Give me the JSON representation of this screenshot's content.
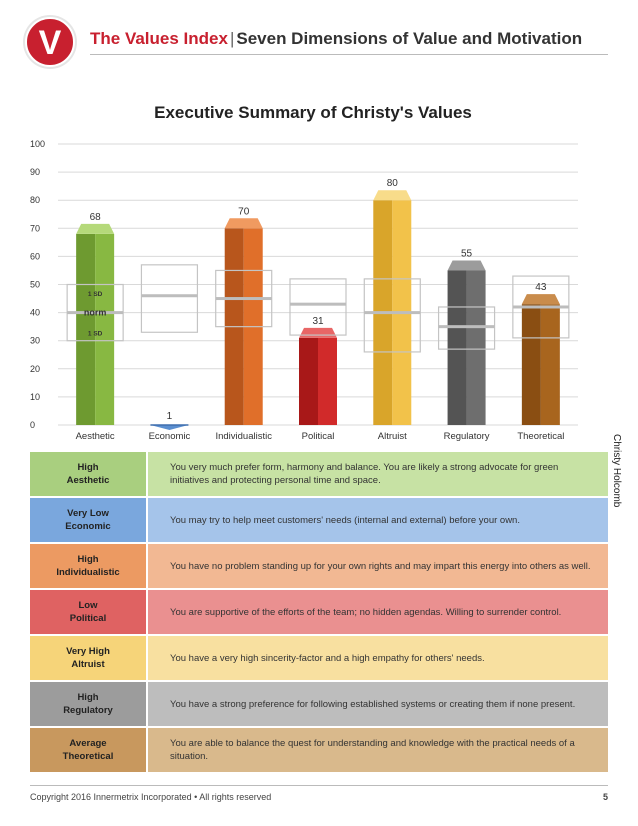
{
  "header": {
    "logo_letter": "V",
    "brand": "The Values Index",
    "separator": "|",
    "subtitle": "Seven Dimensions of Value and Motivation"
  },
  "chart_data": {
    "type": "bar",
    "title": "Executive Summary of Christy's Values",
    "categories": [
      "Aesthetic",
      "Economic",
      "Individualistic",
      "Political",
      "Altruist",
      "Regulatory",
      "Theoretical"
    ],
    "values": [
      68,
      1,
      70,
      31,
      80,
      55,
      43
    ],
    "norm_mean": [
      40,
      46,
      45,
      43,
      40,
      35,
      42
    ],
    "sd_low": [
      30,
      33,
      35,
      32,
      26,
      27,
      31
    ],
    "sd_high": [
      50,
      57,
      55,
      52,
      52,
      42,
      53
    ],
    "band_labels": {
      "upper": "1 SD",
      "mean": "norm",
      "lower": "1 SD"
    },
    "ylim": [
      0,
      100
    ],
    "yticks": [
      0,
      10,
      20,
      30,
      40,
      50,
      60,
      70,
      80,
      90,
      100
    ],
    "grid": true,
    "colors": [
      {
        "front": "#88b842",
        "side": "#6e9a30",
        "top": "#b5d97a"
      },
      {
        "front": "#5b8fd0",
        "side": "#3f6fae",
        "top": "#8cb4e6"
      },
      {
        "front": "#e06f2a",
        "side": "#b8561c",
        "top": "#f09a60"
      },
      {
        "front": "#d12a2a",
        "side": "#a81818",
        "top": "#e86666"
      },
      {
        "front": "#f2c24a",
        "side": "#d9a52a",
        "top": "#f8dc8a"
      },
      {
        "front": "#6e6e6e",
        "side": "#545454",
        "top": "#9c9c9c"
      },
      {
        "front": "#a8651e",
        "side": "#8a4e12",
        "top": "#c98c4c"
      }
    ]
  },
  "person_name": "Christy Holcomb",
  "summary_rows": [
    {
      "level": "High",
      "dimension": "Aesthetic",
      "text": "You very much prefer form, harmony and balance. You are likely a strong advocate for green initiatives and protecting personal time and space.",
      "label_color": "#a9cf7f",
      "desc_color": "#c7e2a4"
    },
    {
      "level": "Very Low",
      "dimension": "Economic",
      "text": "You may try to help meet customers' needs (internal and external) before your own.",
      "label_color": "#7aa7dd",
      "desc_color": "#a5c4ea"
    },
    {
      "level": "High",
      "dimension": "Individualistic",
      "text": "You have no problem standing up for your own rights and may impart this energy into others as well.",
      "label_color": "#ec9a62",
      "desc_color": "#f2b893"
    },
    {
      "level": "Low",
      "dimension": "Political",
      "text": "You are supportive of the efforts of the team; no hidden agendas. Willing to surrender control.",
      "label_color": "#df6262",
      "desc_color": "#ea9090"
    },
    {
      "level": "Very High",
      "dimension": "Altruist",
      "text": "You have a very high sincerity-factor and a high empathy for others' needs.",
      "label_color": "#f6d479",
      "desc_color": "#f8e0a0"
    },
    {
      "level": "High",
      "dimension": "Regulatory",
      "text": "You have a strong preference for following established systems or creating them if none present.",
      "label_color": "#9c9c9c",
      "desc_color": "#bdbdbd"
    },
    {
      "level": "Average",
      "dimension": "Theoretical",
      "text": "You are able to balance the quest for understanding and knowledge with the practical needs of a situation.",
      "label_color": "#c8985e",
      "desc_color": "#d9b98c"
    }
  ],
  "footer": {
    "copyright": "Copyright 2016 Innermetrix Incorporated • All rights reserved",
    "page": "5"
  }
}
